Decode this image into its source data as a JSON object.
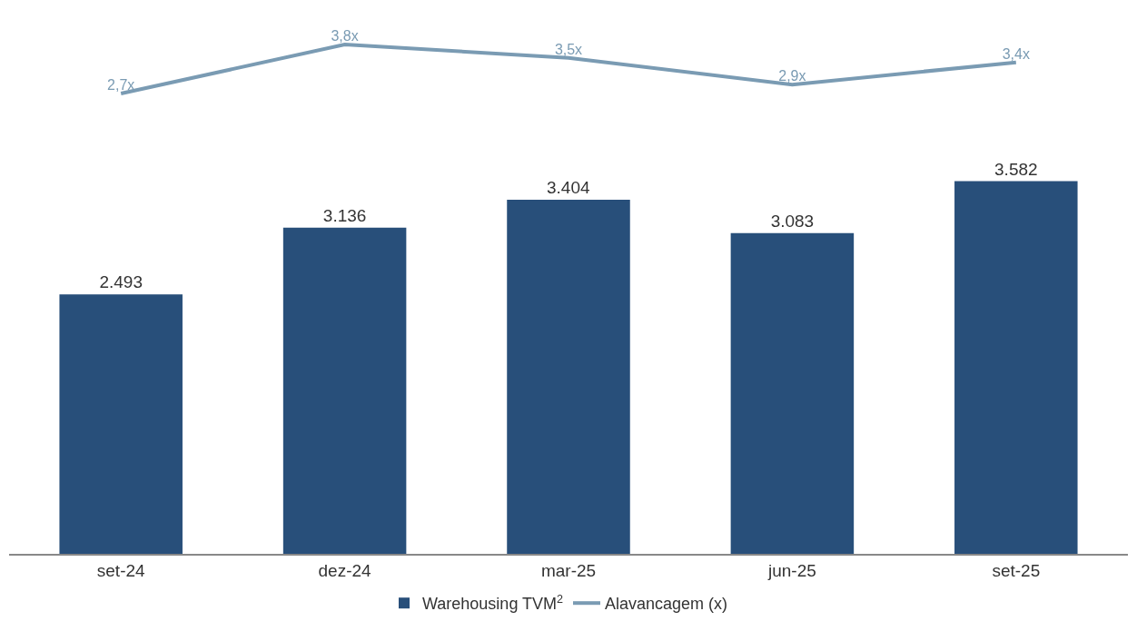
{
  "chart_data": [
    {
      "type": "line",
      "categories": [
        null,
        null,
        null,
        null,
        null
      ],
      "series": [
        {
          "name": "Alavancagem (x)",
          "color": "#7a9bb3",
          "values": [
            2.7,
            3.8,
            3.5,
            2.9,
            3.4
          ],
          "value_labels": [
            "2,7x",
            "3,8x",
            "3,5x",
            "2,9x",
            "3,4x"
          ]
        }
      ],
      "legend": "bottom",
      "grid": false,
      "marker": "none",
      "tick_labels": false
    },
    {
      "type": "bar",
      "categories": [
        "set-24",
        "dez-24",
        "mar-25",
        "jun-25",
        "set-25"
      ],
      "series": [
        {
          "name": "Warehousing TVM$^{2}$",
          "color": "#284f7a",
          "values": [
            2493,
            3136,
            3404,
            3083,
            3582
          ],
          "value_labels": [
            "2.493",
            "3.136",
            "3.404",
            "3.083",
            "3.582"
          ]
        }
      ],
      "legend": "bottom",
      "grid": false,
      "tick_labels": "x"
    }
  ]
}
